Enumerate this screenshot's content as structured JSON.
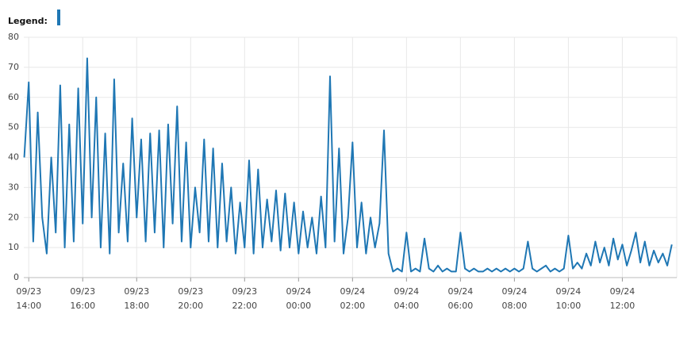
{
  "legend_label": "Legend:",
  "chart_data": {
    "type": "line",
    "x": [
      "09/23 13:50",
      "09/23 14:00",
      "09/23 14:10",
      "09/23 14:20",
      "09/23 14:30",
      "09/23 14:40",
      "09/23 14:50",
      "09/23 15:00",
      "09/23 15:10",
      "09/23 15:20",
      "09/23 15:30",
      "09/23 15:40",
      "09/23 15:50",
      "09/23 16:00",
      "09/23 16:10",
      "09/23 16:20",
      "09/23 16:30",
      "09/23 16:40",
      "09/23 16:50",
      "09/23 17:00",
      "09/23 17:10",
      "09/23 17:20",
      "09/23 17:30",
      "09/23 17:40",
      "09/23 17:50",
      "09/23 18:00",
      "09/23 18:10",
      "09/23 18:20",
      "09/23 18:30",
      "09/23 18:40",
      "09/23 18:50",
      "09/23 19:00",
      "09/23 19:10",
      "09/23 19:20",
      "09/23 19:30",
      "09/23 19:40",
      "09/23 19:50",
      "09/23 20:00",
      "09/23 20:10",
      "09/23 20:20",
      "09/23 20:30",
      "09/23 20:40",
      "09/23 20:50",
      "09/23 21:00",
      "09/23 21:10",
      "09/23 21:20",
      "09/23 21:30",
      "09/23 21:40",
      "09/23 21:50",
      "09/23 22:00",
      "09/23 22:10",
      "09/23 22:20",
      "09/23 22:30",
      "09/23 22:40",
      "09/23 22:50",
      "09/23 23:00",
      "09/23 23:10",
      "09/23 23:20",
      "09/23 23:30",
      "09/23 23:40",
      "09/23 23:50",
      "09/24 00:00",
      "09/24 00:10",
      "09/24 00:20",
      "09/24 00:30",
      "09/24 00:40",
      "09/24 00:50",
      "09/24 01:00",
      "09/24 01:10",
      "09/24 01:20",
      "09/24 01:30",
      "09/24 01:40",
      "09/24 01:50",
      "09/24 02:00",
      "09/24 02:10",
      "09/24 02:20",
      "09/24 02:30",
      "09/24 02:40",
      "09/24 02:50",
      "09/24 03:00",
      "09/24 03:10",
      "09/24 03:20",
      "09/24 03:30",
      "09/24 03:40",
      "09/24 03:50",
      "09/24 04:00",
      "09/24 04:10",
      "09/24 04:20",
      "09/24 04:30",
      "09/24 04:40",
      "09/24 04:50",
      "09/24 05:00",
      "09/24 05:10",
      "09/24 05:20",
      "09/24 05:30",
      "09/24 05:40",
      "09/24 05:50",
      "09/24 06:00",
      "09/24 06:10",
      "09/24 06:20",
      "09/24 06:30",
      "09/24 06:40",
      "09/24 06:50",
      "09/24 07:00",
      "09/24 07:10",
      "09/24 07:20",
      "09/24 07:30",
      "09/24 07:40",
      "09/24 07:50",
      "09/24 08:00",
      "09/24 08:10",
      "09/24 08:20",
      "09/24 08:30",
      "09/24 08:40",
      "09/24 08:50",
      "09/24 09:00",
      "09/24 09:10",
      "09/24 09:20",
      "09/24 09:30",
      "09/24 09:40",
      "09/24 09:50",
      "09/24 10:00",
      "09/24 10:10",
      "09/24 10:20",
      "09/24 10:30",
      "09/24 10:40",
      "09/24 10:50",
      "09/24 11:00",
      "09/24 11:10",
      "09/24 11:20",
      "09/24 11:30",
      "09/24 11:40",
      "09/24 11:50",
      "09/24 12:00",
      "09/24 12:10",
      "09/24 12:20",
      "09/24 12:30",
      "09/24 12:40",
      "09/24 12:50",
      "09/24 13:00",
      "09/24 13:10",
      "09/24 13:20",
      "09/24 13:30",
      "09/24 13:40",
      "09/24 13:50"
    ],
    "series": [
      {
        "color": "#1f77b4",
        "values": [
          40,
          65,
          12,
          55,
          20,
          8,
          40,
          15,
          64,
          10,
          51,
          12,
          63,
          18,
          73,
          20,
          60,
          10,
          48,
          8,
          66,
          15,
          38,
          12,
          53,
          20,
          46,
          12,
          48,
          15,
          49,
          10,
          51,
          18,
          57,
          12,
          45,
          10,
          30,
          15,
          46,
          12,
          43,
          10,
          38,
          12,
          30,
          8,
          25,
          10,
          39,
          8,
          36,
          10,
          26,
          12,
          29,
          9,
          28,
          10,
          25,
          8,
          22,
          10,
          20,
          8,
          27,
          10,
          67,
          12,
          43,
          8,
          20,
          45,
          10,
          25,
          8,
          20,
          10,
          18,
          49,
          8,
          2,
          3,
          2,
          15,
          2,
          3,
          2,
          13,
          3,
          2,
          4,
          2,
          3,
          2,
          2,
          15,
          3,
          2,
          3,
          2,
          2,
          3,
          2,
          3,
          2,
          3,
          2,
          3,
          2,
          3,
          12,
          3,
          2,
          3,
          4,
          2,
          3,
          2,
          3,
          14,
          3,
          5,
          3,
          8,
          4,
          12,
          5,
          10,
          4,
          13,
          6,
          11,
          4,
          9,
          15,
          5,
          12,
          4,
          9,
          5,
          8,
          4,
          11
        ]
      }
    ],
    "xlim": [
      "09/23 13:49",
      "09/24 14:01"
    ],
    "xticks": [
      {
        "value": "09/23 14:00",
        "label": [
          "09/23",
          "14:00"
        ]
      },
      {
        "value": "09/23 16:00",
        "label": [
          "09/23",
          "16:00"
        ]
      },
      {
        "value": "09/23 18:00",
        "label": [
          "09/23",
          "18:00"
        ]
      },
      {
        "value": "09/23 20:00",
        "label": [
          "09/23",
          "20:00"
        ]
      },
      {
        "value": "09/23 22:00",
        "label": [
          "09/23",
          "22:00"
        ]
      },
      {
        "value": "09/24 00:00",
        "label": [
          "09/24",
          "00:00"
        ]
      },
      {
        "value": "09/24 02:00",
        "label": [
          "09/24",
          "02:00"
        ]
      },
      {
        "value": "09/24 04:00",
        "label": [
          "09/24",
          "04:00"
        ]
      },
      {
        "value": "09/24 06:00",
        "label": [
          "09/24",
          "06:00"
        ]
      },
      {
        "value": "09/24 08:00",
        "label": [
          "09/24",
          "08:00"
        ]
      },
      {
        "value": "09/24 10:00",
        "label": [
          "09/24",
          "10:00"
        ]
      },
      {
        "value": "09/24 12:00",
        "label": [
          "09/24",
          "12:00"
        ]
      }
    ],
    "ylim": [
      0,
      80
    ],
    "yticks": [
      0,
      10,
      20,
      30,
      40,
      50,
      60,
      70,
      80
    ],
    "grid": true
  }
}
